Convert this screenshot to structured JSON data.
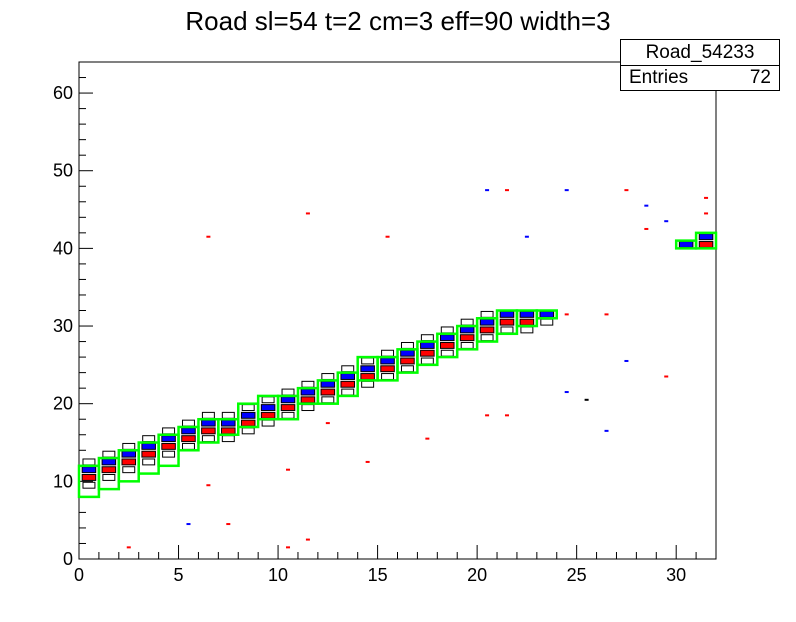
{
  "title": "Road sl=54 t=2 cm=3 eff=90 width=3",
  "stats": {
    "name": "Road_54233",
    "entries_label": "Entries",
    "entries_value": "72"
  },
  "colors": {
    "black": "#000000",
    "blue": "#0000ff",
    "red": "#ff0000",
    "green": "#00ff00",
    "background": "#ffffff"
  },
  "chart_data": {
    "type": "heatmap",
    "title": "Road sl=54 t=2 cm=3 eff=90 width=3",
    "xlabel": "",
    "ylabel": "",
    "xlim": [
      0,
      32
    ],
    "ylim": [
      0,
      64
    ],
    "x_ticks": [
      "0",
      "5",
      "10",
      "15",
      "20",
      "25",
      "30"
    ],
    "y_ticks": [
      "0",
      "10",
      "20",
      "30",
      "40",
      "50",
      "60"
    ],
    "grid": false,
    "road_boxes": [
      {
        "x0": 0,
        "x1": 1,
        "y0": 8,
        "y1": 12
      },
      {
        "x0": 1,
        "x1": 2,
        "y0": 9,
        "y1": 13
      },
      {
        "x0": 2,
        "x1": 3,
        "y0": 10,
        "y1": 14
      },
      {
        "x0": 3,
        "x1": 4,
        "y0": 11,
        "y1": 15
      },
      {
        "x0": 4,
        "x1": 5,
        "y0": 12,
        "y1": 16
      },
      {
        "x0": 5,
        "x1": 6,
        "y0": 14,
        "y1": 17
      },
      {
        "x0": 6,
        "x1": 7,
        "y0": 15,
        "y1": 18
      },
      {
        "x0": 7,
        "x1": 8,
        "y0": 16,
        "y1": 18
      },
      {
        "x0": 8,
        "x1": 9,
        "y0": 17,
        "y1": 20
      },
      {
        "x0": 9,
        "x1": 10,
        "y0": 18,
        "y1": 21
      },
      {
        "x0": 10,
        "x1": 11,
        "y0": 18,
        "y1": 21
      },
      {
        "x0": 11,
        "x1": 12,
        "y0": 20,
        "y1": 22
      },
      {
        "x0": 12,
        "x1": 13,
        "y0": 20,
        "y1": 23
      },
      {
        "x0": 13,
        "x1": 14,
        "y0": 21,
        "y1": 24
      },
      {
        "x0": 14,
        "x1": 15,
        "y0": 23,
        "y1": 26
      },
      {
        "x0": 15,
        "x1": 16,
        "y0": 23,
        "y1": 26
      },
      {
        "x0": 16,
        "x1": 17,
        "y0": 24,
        "y1": 27
      },
      {
        "x0": 17,
        "x1": 18,
        "y0": 25,
        "y1": 28
      },
      {
        "x0": 18,
        "x1": 19,
        "y0": 26,
        "y1": 29
      },
      {
        "x0": 19,
        "x1": 20,
        "y0": 27,
        "y1": 30
      },
      {
        "x0": 20,
        "x1": 21,
        "y0": 28,
        "y1": 31
      },
      {
        "x0": 21,
        "x1": 22,
        "y0": 29,
        "y1": 32
      },
      {
        "x0": 22,
        "x1": 23,
        "y0": 30,
        "y1": 32
      },
      {
        "x0": 23,
        "x1": 24,
        "y0": 31,
        "y1": 32
      },
      {
        "x0": 30,
        "x1": 31,
        "y0": 40,
        "y1": 41
      },
      {
        "x0": 31,
        "x1": 32,
        "y0": 40,
        "y1": 42
      }
    ],
    "blue_cells": [
      [
        0,
        11
      ],
      [
        1,
        12
      ],
      [
        2,
        13
      ],
      [
        3,
        14
      ],
      [
        4,
        15
      ],
      [
        5,
        16
      ],
      [
        6,
        17
      ],
      [
        7,
        17
      ],
      [
        8,
        18
      ],
      [
        9,
        19
      ],
      [
        10,
        20
      ],
      [
        11,
        21
      ],
      [
        12,
        22
      ],
      [
        13,
        23
      ],
      [
        14,
        24
      ],
      [
        15,
        25
      ],
      [
        16,
        26
      ],
      [
        17,
        27
      ],
      [
        18,
        28
      ],
      [
        19,
        29
      ],
      [
        20,
        30
      ],
      [
        21,
        31
      ],
      [
        22,
        31
      ],
      [
        23,
        31
      ],
      [
        30,
        40
      ],
      [
        31,
        41
      ]
    ],
    "red_cells": [
      [
        0,
        10
      ],
      [
        1,
        11
      ],
      [
        2,
        12
      ],
      [
        3,
        13
      ],
      [
        4,
        14
      ],
      [
        5,
        15
      ],
      [
        6,
        16
      ],
      [
        7,
        16
      ],
      [
        8,
        17
      ],
      [
        9,
        18
      ],
      [
        10,
        19
      ],
      [
        11,
        20
      ],
      [
        12,
        21
      ],
      [
        13,
        22
      ],
      [
        14,
        23
      ],
      [
        15,
        24
      ],
      [
        16,
        25
      ],
      [
        17,
        26
      ],
      [
        18,
        27
      ],
      [
        19,
        28
      ],
      [
        20,
        29
      ],
      [
        21,
        30
      ],
      [
        22,
        30
      ],
      [
        23,
        31
      ],
      [
        31,
        40
      ]
    ],
    "black_cells": [
      [
        0,
        9
      ],
      [
        0,
        12
      ],
      [
        1,
        10
      ],
      [
        1,
        13
      ],
      [
        2,
        11
      ],
      [
        2,
        14
      ],
      [
        3,
        12
      ],
      [
        3,
        15
      ],
      [
        4,
        13
      ],
      [
        4,
        16
      ],
      [
        5,
        14
      ],
      [
        5,
        17
      ],
      [
        6,
        15
      ],
      [
        6,
        18
      ],
      [
        7,
        15
      ],
      [
        7,
        18
      ],
      [
        8,
        16
      ],
      [
        8,
        19
      ],
      [
        9,
        17
      ],
      [
        9,
        20
      ],
      [
        10,
        18
      ],
      [
        10,
        21
      ],
      [
        11,
        19
      ],
      [
        11,
        22
      ],
      [
        12,
        20
      ],
      [
        12,
        23
      ],
      [
        13,
        21
      ],
      [
        13,
        24
      ],
      [
        14,
        22
      ],
      [
        14,
        25
      ],
      [
        15,
        23
      ],
      [
        15,
        26
      ],
      [
        16,
        24
      ],
      [
        16,
        27
      ],
      [
        17,
        25
      ],
      [
        17,
        28
      ],
      [
        18,
        26
      ],
      [
        18,
        29
      ],
      [
        19,
        27
      ],
      [
        19,
        30
      ],
      [
        20,
        28
      ],
      [
        20,
        31
      ],
      [
        21,
        29
      ],
      [
        22,
        29
      ],
      [
        23,
        30
      ],
      [
        30,
        40
      ]
    ],
    "outlier_points": [
      {
        "x": 2.5,
        "y": 1.5,
        "color": "red"
      },
      {
        "x": 5.5,
        "y": 4.5,
        "color": "blue"
      },
      {
        "x": 7.5,
        "y": 4.5,
        "color": "red"
      },
      {
        "x": 6.5,
        "y": 9.5,
        "color": "red"
      },
      {
        "x": 6.5,
        "y": 41.5,
        "color": "red"
      },
      {
        "x": 10.5,
        "y": 11.5,
        "color": "red"
      },
      {
        "x": 10.5,
        "y": 1.5,
        "color": "red"
      },
      {
        "x": 11.5,
        "y": 2.5,
        "color": "red"
      },
      {
        "x": 11.5,
        "y": 44.5,
        "color": "red"
      },
      {
        "x": 12.5,
        "y": 17.5,
        "color": "red"
      },
      {
        "x": 14.5,
        "y": 12.5,
        "color": "red"
      },
      {
        "x": 15.5,
        "y": 41.5,
        "color": "red"
      },
      {
        "x": 17.5,
        "y": 15.5,
        "color": "red"
      },
      {
        "x": 20.5,
        "y": 18.5,
        "color": "red"
      },
      {
        "x": 20.5,
        "y": 47.5,
        "color": "blue"
      },
      {
        "x": 21.5,
        "y": 47.5,
        "color": "red"
      },
      {
        "x": 21.5,
        "y": 18.5,
        "color": "red"
      },
      {
        "x": 22.5,
        "y": 41.5,
        "color": "blue"
      },
      {
        "x": 24.5,
        "y": 47.5,
        "color": "blue"
      },
      {
        "x": 24.5,
        "y": 21.5,
        "color": "blue"
      },
      {
        "x": 24.5,
        "y": 31.5,
        "color": "red"
      },
      {
        "x": 25.5,
        "y": 20.5,
        "color": "black"
      },
      {
        "x": 26.5,
        "y": 16.5,
        "color": "blue"
      },
      {
        "x": 26.5,
        "y": 31.5,
        "color": "red"
      },
      {
        "x": 27.5,
        "y": 25.5,
        "color": "blue"
      },
      {
        "x": 27.5,
        "y": 47.5,
        "color": "red"
      },
      {
        "x": 28.5,
        "y": 45.5,
        "color": "blue"
      },
      {
        "x": 28.5,
        "y": 42.5,
        "color": "red"
      },
      {
        "x": 29.5,
        "y": 43.5,
        "color": "blue"
      },
      {
        "x": 29.5,
        "y": 23.5,
        "color": "red"
      },
      {
        "x": 31.5,
        "y": 46.5,
        "color": "red"
      },
      {
        "x": 31.5,
        "y": 44.5,
        "color": "red"
      }
    ]
  }
}
